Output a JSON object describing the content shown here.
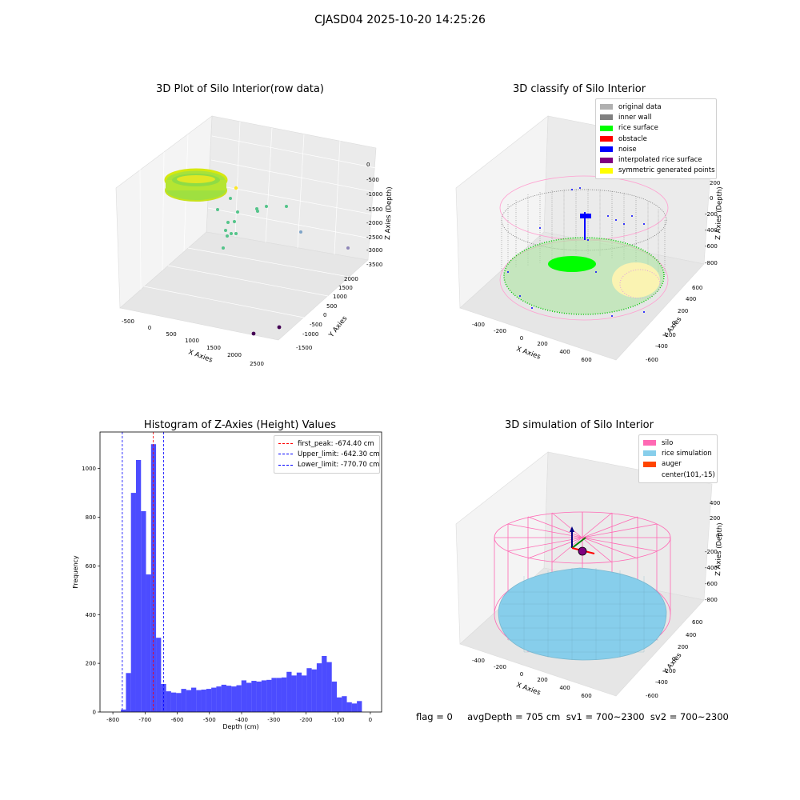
{
  "figure": {
    "suptitle": "CJASD04 2025-10-20 14:25:26",
    "footer": "flag = 0     avgDepth = 705 cm  sv1 = 700~2300  sv2 = 700~2300"
  },
  "panels": {
    "raw": {
      "title": "3D Plot of Silo Interior(row data)",
      "xlabel": "X Axies",
      "ylabel": "Y Axies",
      "zlabel": "Z Axies (Depth)",
      "xticks": [
        "-500",
        "0",
        "500",
        "1000",
        "1500",
        "2000",
        "2500"
      ],
      "yticks": [
        "-1500",
        "-1000",
        "-500",
        "0",
        "500",
        "1000",
        "1500",
        "2000"
      ],
      "zticks": [
        "0",
        "-500",
        "-1000",
        "-1500",
        "-2000",
        "-2500",
        "-3000",
        "-3500"
      ]
    },
    "classify": {
      "title": "3D classify of Silo Interior",
      "xlabel": "X Axies",
      "ylabel": "Y Axies",
      "zlabel": "Z Axies (Depth)",
      "xticks": [
        "-400",
        "-200",
        "0",
        "200",
        "400",
        "600"
      ],
      "yticks": [
        "-600",
        "-400",
        "-200",
        "0",
        "200",
        "400",
        "600"
      ],
      "zticks": [
        "200",
        "0",
        "-200",
        "-400",
        "-600",
        "-800"
      ],
      "legend": [
        {
          "label": "original data",
          "color": "#b0b0b0"
        },
        {
          "label": "inner wall",
          "color": "#808080"
        },
        {
          "label": "rice surface",
          "color": "#00ff00"
        },
        {
          "label": "obstacle",
          "color": "#ff0000"
        },
        {
          "label": "noise",
          "color": "#0000ff"
        },
        {
          "label": "interpolated rice surface",
          "color": "#800080"
        },
        {
          "label": "symmetric generated points",
          "color": "#ffff00"
        }
      ]
    },
    "simulation": {
      "title": "3D simulation of Silo Interior",
      "xlabel": "X Axies",
      "ylabel": "Y Axies",
      "zlabel": "Z Axies (Depth)",
      "xticks": [
        "-400",
        "-200",
        "0",
        "200",
        "400",
        "600"
      ],
      "yticks": [
        "-600",
        "-400",
        "-200",
        "0",
        "200",
        "400",
        "600"
      ],
      "zticks": [
        "400",
        "200",
        "0",
        "-200",
        "-400",
        "-600",
        "-800"
      ],
      "legend": [
        {
          "label": "silo",
          "color": "#ff69b4"
        },
        {
          "label": "rice simulation",
          "color": "#87ceeb"
        },
        {
          "label": "auger",
          "color": "#ff4500"
        },
        {
          "label": "center(101,-15)",
          "color": ""
        }
      ]
    }
  },
  "chart_data": {
    "type": "bar",
    "title": "Histogram of Z-Axies (Height) Values",
    "xlabel": "Depth (cm)",
    "ylabel": "Frequency",
    "xlim": [
      -840,
      35
    ],
    "ylim": [
      0,
      1150
    ],
    "xticks": [
      -800,
      -700,
      -600,
      -500,
      -400,
      -300,
      -200,
      -100,
      0
    ],
    "yticks": [
      0,
      200,
      400,
      600,
      800,
      1000
    ],
    "bar_color": "#0000ff",
    "bin_start": -775,
    "bin_width": 15.6,
    "values": [
      10,
      160,
      900,
      1035,
      825,
      565,
      1100,
      305,
      115,
      85,
      80,
      78,
      95,
      90,
      100,
      90,
      92,
      95,
      100,
      105,
      112,
      108,
      105,
      110,
      130,
      120,
      128,
      125,
      130,
      132,
      140,
      140,
      142,
      165,
      150,
      162,
      150,
      180,
      175,
      200,
      230,
      205,
      125,
      60,
      65,
      40,
      35,
      45
    ],
    "vlines": [
      {
        "label": "first_peak: -674.40 cm",
        "x": -674.4,
        "color": "#ff0000"
      },
      {
        "label": "Upper_limit: -642.30 cm",
        "x": -642.3,
        "color": "#0000ff"
      },
      {
        "label": "Lower_limit: -770.70 cm",
        "x": -770.7,
        "color": "#0000ff"
      }
    ]
  }
}
